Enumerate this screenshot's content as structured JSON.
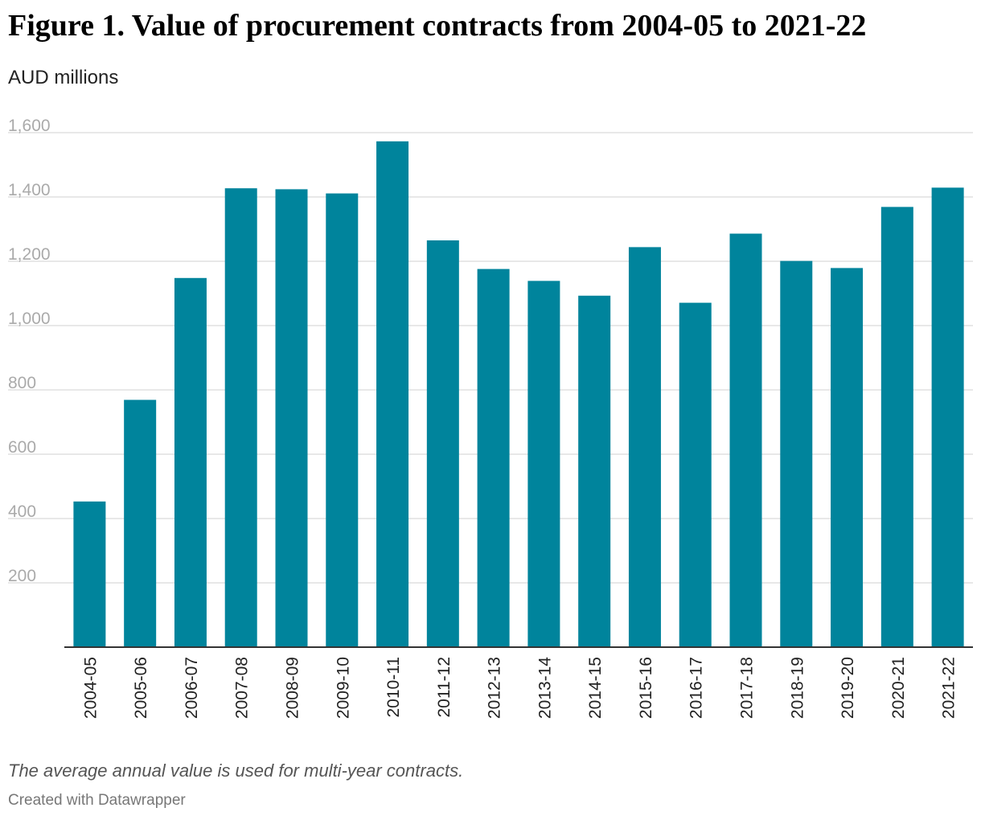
{
  "title": "Figure 1. Value of procurement contracts from 2004-05 to 2021-22",
  "subtitle": "AUD millions",
  "note": "The average annual value is used for multi-year contracts.",
  "credit": "Created with Datawrapper",
  "colors": {
    "bar": "#00849c",
    "grid": "#e0e0e0",
    "axis": "#333333",
    "tick_label": "#aaaaaa"
  },
  "chart_data": {
    "type": "bar",
    "categories": [
      "2004-05",
      "2005-06",
      "2006-07",
      "2007-08",
      "2008-09",
      "2009-10",
      "2010-11",
      "2011-12",
      "2012-13",
      "2013-14",
      "2014-15",
      "2015-16",
      "2016-17",
      "2017-18",
      "2018-19",
      "2019-20",
      "2020-21",
      "2021-22"
    ],
    "values": [
      453,
      769,
      1148,
      1427,
      1424,
      1411,
      1573,
      1265,
      1176,
      1139,
      1093,
      1244,
      1071,
      1286,
      1201,
      1179,
      1369,
      1429
    ],
    "ylim": [
      0,
      1600
    ],
    "yticks": [
      200,
      400,
      600,
      800,
      1000,
      1200,
      1400,
      1600
    ],
    "ytick_labels": [
      "200",
      "400",
      "600",
      "800",
      "1,000",
      "1,200",
      "1,400",
      "1,600"
    ],
    "grid": true,
    "legend": "none"
  }
}
